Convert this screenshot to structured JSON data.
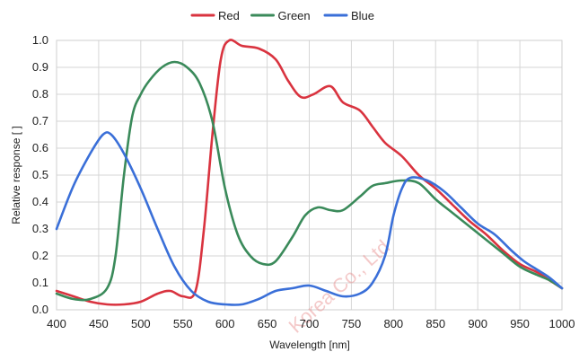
{
  "chart_data": {
    "type": "line",
    "title": "",
    "xlabel": "Wavelength [nm]",
    "ylabel": "Relative response [ ]",
    "xlim": [
      400,
      1000
    ],
    "ylim": [
      0,
      1.0
    ],
    "x_ticks": [
      "400",
      "450",
      "500",
      "550",
      "600",
      "650",
      "700",
      "750",
      "800",
      "850",
      "900",
      "950",
      "1000"
    ],
    "y_ticks": [
      "0.0",
      "0.1",
      "0.2",
      "0.3",
      "0.4",
      "0.5",
      "0.6",
      "0.7",
      "0.8",
      "0.9",
      "1.0"
    ],
    "grid": true,
    "legend_position": "top",
    "watermark": "Korea Co., Ltd",
    "series": [
      {
        "name": "Red",
        "color": "#d9333f",
        "points": [
          [
            400,
            0.07
          ],
          [
            420,
            0.05
          ],
          [
            440,
            0.03
          ],
          [
            460,
            0.02
          ],
          [
            480,
            0.02
          ],
          [
            500,
            0.03
          ],
          [
            520,
            0.06
          ],
          [
            535,
            0.07
          ],
          [
            550,
            0.05
          ],
          [
            565,
            0.07
          ],
          [
            575,
            0.3
          ],
          [
            585,
            0.65
          ],
          [
            595,
            0.93
          ],
          [
            605,
            1.0
          ],
          [
            620,
            0.98
          ],
          [
            640,
            0.97
          ],
          [
            660,
            0.93
          ],
          [
            675,
            0.85
          ],
          [
            690,
            0.79
          ],
          [
            705,
            0.8
          ],
          [
            725,
            0.83
          ],
          [
            740,
            0.77
          ],
          [
            760,
            0.74
          ],
          [
            775,
            0.68
          ],
          [
            790,
            0.62
          ],
          [
            810,
            0.57
          ],
          [
            830,
            0.5
          ],
          [
            850,
            0.45
          ],
          [
            870,
            0.39
          ],
          [
            890,
            0.33
          ],
          [
            910,
            0.28
          ],
          [
            930,
            0.22
          ],
          [
            950,
            0.17
          ],
          [
            970,
            0.14
          ],
          [
            985,
            0.11
          ],
          [
            1000,
            0.08
          ]
        ]
      },
      {
        "name": "Green",
        "color": "#3a8a5a",
        "points": [
          [
            400,
            0.06
          ],
          [
            420,
            0.04
          ],
          [
            440,
            0.04
          ],
          [
            460,
            0.08
          ],
          [
            470,
            0.2
          ],
          [
            480,
            0.5
          ],
          [
            490,
            0.72
          ],
          [
            500,
            0.8
          ],
          [
            510,
            0.85
          ],
          [
            525,
            0.9
          ],
          [
            540,
            0.92
          ],
          [
            555,
            0.9
          ],
          [
            570,
            0.84
          ],
          [
            585,
            0.7
          ],
          [
            600,
            0.45
          ],
          [
            615,
            0.28
          ],
          [
            630,
            0.2
          ],
          [
            645,
            0.17
          ],
          [
            660,
            0.18
          ],
          [
            680,
            0.27
          ],
          [
            695,
            0.35
          ],
          [
            710,
            0.38
          ],
          [
            725,
            0.37
          ],
          [
            740,
            0.37
          ],
          [
            760,
            0.42
          ],
          [
            775,
            0.46
          ],
          [
            790,
            0.47
          ],
          [
            810,
            0.48
          ],
          [
            830,
            0.47
          ],
          [
            850,
            0.41
          ],
          [
            870,
            0.36
          ],
          [
            890,
            0.31
          ],
          [
            910,
            0.26
          ],
          [
            930,
            0.21
          ],
          [
            950,
            0.16
          ],
          [
            970,
            0.13
          ],
          [
            985,
            0.11
          ],
          [
            1000,
            0.08
          ]
        ]
      },
      {
        "name": "Blue",
        "color": "#3a6fd8",
        "points": [
          [
            400,
            0.3
          ],
          [
            420,
            0.46
          ],
          [
            440,
            0.58
          ],
          [
            455,
            0.65
          ],
          [
            465,
            0.65
          ],
          [
            480,
            0.58
          ],
          [
            500,
            0.45
          ],
          [
            520,
            0.3
          ],
          [
            540,
            0.16
          ],
          [
            560,
            0.07
          ],
          [
            580,
            0.03
          ],
          [
            600,
            0.02
          ],
          [
            620,
            0.02
          ],
          [
            640,
            0.04
          ],
          [
            660,
            0.07
          ],
          [
            680,
            0.08
          ],
          [
            700,
            0.09
          ],
          [
            720,
            0.07
          ],
          [
            740,
            0.05
          ],
          [
            760,
            0.06
          ],
          [
            775,
            0.1
          ],
          [
            790,
            0.2
          ],
          [
            800,
            0.35
          ],
          [
            810,
            0.45
          ],
          [
            820,
            0.49
          ],
          [
            840,
            0.48
          ],
          [
            860,
            0.44
          ],
          [
            880,
            0.38
          ],
          [
            900,
            0.32
          ],
          [
            920,
            0.28
          ],
          [
            940,
            0.22
          ],
          [
            955,
            0.18
          ],
          [
            970,
            0.15
          ],
          [
            985,
            0.12
          ],
          [
            1000,
            0.08
          ]
        ]
      }
    ]
  }
}
